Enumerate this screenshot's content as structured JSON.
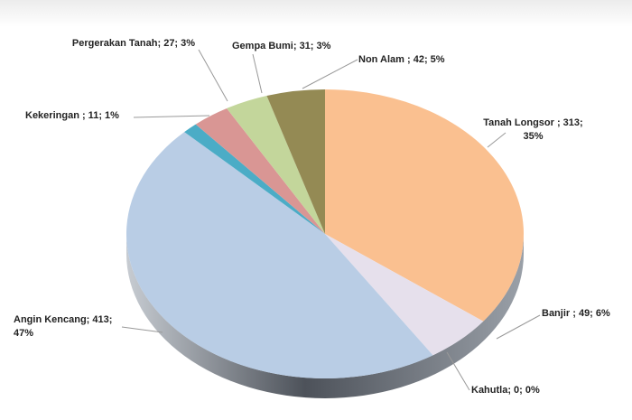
{
  "chart_data": {
    "type": "pie",
    "values": [
      313,
      49,
      0,
      413,
      11,
      27,
      31,
      42
    ],
    "value_labels": [
      "Tanah Longsor ; 313; 35%",
      "Banjir ; 49; 6%",
      "Kahutla; 0; 0%",
      "Angin Kencang; 413; 47%",
      "Kekeringan ; 11; 1%",
      "Pergerakan Tanah; 27; 3%",
      "Gempa Bumi; 31; 3%",
      "Non Alam ; 42; 5%"
    ],
    "colors": [
      "#fac090",
      "#e6e0ec",
      "#c0504d",
      "#b9cde5",
      "#4bacc6",
      "#d99694",
      "#c3d69b",
      "#948a54"
    ]
  }
}
